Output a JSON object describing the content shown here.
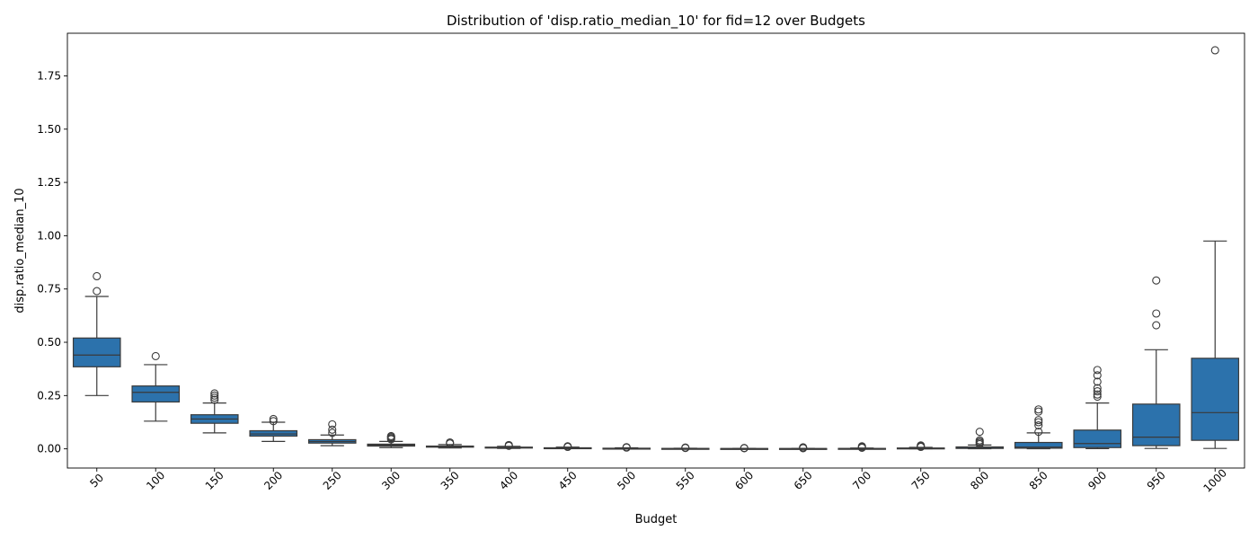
{
  "chart_data": {
    "type": "box",
    "title": "Distribution of 'disp.ratio_median_10' for fid=12 over Budgets",
    "xlabel": "Budget",
    "ylabel": "disp.ratio_median_10",
    "categories": [
      "50",
      "100",
      "150",
      "200",
      "250",
      "300",
      "350",
      "400",
      "450",
      "500",
      "550",
      "600",
      "650",
      "700",
      "750",
      "800",
      "850",
      "900",
      "950",
      "1000"
    ],
    "ylim": [
      -0.09,
      1.95
    ],
    "yticks": [
      0.0,
      0.25,
      0.5,
      0.75,
      1.0,
      1.25,
      1.5,
      1.75
    ],
    "ytick_labels": [
      "0.00",
      "0.25",
      "0.50",
      "0.75",
      "1.00",
      "1.25",
      "1.50",
      "1.75"
    ],
    "grid": false,
    "box_color": "#2c72ac",
    "line_color": "#3a3a3a",
    "boxes": [
      {
        "category": "50",
        "whisker_low": 0.25,
        "q1": 0.385,
        "median": 0.44,
        "q3": 0.52,
        "whisker_high": 0.715,
        "outliers": [
          0.74,
          0.81
        ]
      },
      {
        "category": "100",
        "whisker_low": 0.13,
        "q1": 0.22,
        "median": 0.265,
        "q3": 0.295,
        "whisker_high": 0.395,
        "outliers": [
          0.435
        ]
      },
      {
        "category": "150",
        "whisker_low": 0.075,
        "q1": 0.12,
        "median": 0.14,
        "q3": 0.16,
        "whisker_high": 0.215,
        "outliers": [
          0.23,
          0.24,
          0.25,
          0.26
        ]
      },
      {
        "category": "200",
        "whisker_low": 0.035,
        "q1": 0.06,
        "median": 0.07,
        "q3": 0.085,
        "whisker_high": 0.125,
        "outliers": [
          0.13,
          0.14
        ]
      },
      {
        "category": "250",
        "whisker_low": 0.015,
        "q1": 0.027,
        "median": 0.034,
        "q3": 0.043,
        "whisker_high": 0.065,
        "outliers": [
          0.075,
          0.09,
          0.115
        ]
      },
      {
        "category": "300",
        "whisker_low": 0.006,
        "q1": 0.013,
        "median": 0.018,
        "q3": 0.022,
        "whisker_high": 0.035,
        "outliers": [
          0.045,
          0.05,
          0.055,
          0.06
        ]
      },
      {
        "category": "350",
        "whisker_low": 0.004,
        "q1": 0.008,
        "median": 0.01,
        "q3": 0.013,
        "whisker_high": 0.02,
        "outliers": [
          0.025,
          0.03
        ]
      },
      {
        "category": "400",
        "whisker_low": 0.002,
        "q1": 0.004,
        "median": 0.006,
        "q3": 0.008,
        "whisker_high": 0.012,
        "outliers": [
          0.014,
          0.018
        ]
      },
      {
        "category": "450",
        "whisker_low": 0.001,
        "q1": 0.002,
        "median": 0.003,
        "q3": 0.005,
        "whisker_high": 0.008,
        "outliers": [
          0.009,
          0.012
        ]
      },
      {
        "category": "500",
        "whisker_low": 0.0005,
        "q1": 0.0015,
        "median": 0.002,
        "q3": 0.003,
        "whisker_high": 0.005,
        "outliers": [
          0.006,
          0.008
        ]
      },
      {
        "category": "550",
        "whisker_low": 0.0003,
        "q1": 0.001,
        "median": 0.0015,
        "q3": 0.002,
        "whisker_high": 0.003,
        "outliers": [
          0.004,
          0.006
        ]
      },
      {
        "category": "600",
        "whisker_low": 0.0002,
        "q1": 0.0006,
        "median": 0.001,
        "q3": 0.0015,
        "whisker_high": 0.0025,
        "outliers": [
          0.003,
          0.004
        ]
      },
      {
        "category": "650",
        "whisker_low": 0.0002,
        "q1": 0.0006,
        "median": 0.001,
        "q3": 0.0015,
        "whisker_high": 0.0025,
        "outliers": [
          0.003,
          0.005,
          0.007
        ]
      },
      {
        "category": "700",
        "whisker_low": 0.0002,
        "q1": 0.0008,
        "median": 0.0012,
        "q3": 0.002,
        "whisker_high": 0.004,
        "outliers": [
          0.005,
          0.008,
          0.012
        ]
      },
      {
        "category": "750",
        "whisker_low": 0.0003,
        "q1": 0.001,
        "median": 0.002,
        "q3": 0.004,
        "whisker_high": 0.007,
        "outliers": [
          0.009,
          0.012,
          0.016
        ]
      },
      {
        "category": "800",
        "whisker_low": 0.0003,
        "q1": 0.002,
        "median": 0.004,
        "q3": 0.009,
        "whisker_high": 0.018,
        "outliers": [
          0.022,
          0.028,
          0.033,
          0.04,
          0.08
        ]
      },
      {
        "category": "850",
        "whisker_low": 0.0005,
        "q1": 0.003,
        "median": 0.008,
        "q3": 0.03,
        "whisker_high": 0.075,
        "outliers": [
          0.08,
          0.11,
          0.125,
          0.135,
          0.175,
          0.185
        ]
      },
      {
        "category": "900",
        "whisker_low": 0.001,
        "q1": 0.006,
        "median": 0.025,
        "q3": 0.088,
        "whisker_high": 0.215,
        "outliers": [
          0.245,
          0.255,
          0.27,
          0.285,
          0.315,
          0.345,
          0.37
        ]
      },
      {
        "category": "950",
        "whisker_low": 0.002,
        "q1": 0.015,
        "median": 0.055,
        "q3": 0.21,
        "whisker_high": 0.465,
        "outliers": [
          0.58,
          0.635,
          0.79
        ]
      },
      {
        "category": "1000",
        "whisker_low": 0.002,
        "q1": 0.04,
        "median": 0.17,
        "q3": 0.425,
        "whisker_high": 0.975,
        "outliers": [
          1.87
        ]
      }
    ]
  }
}
